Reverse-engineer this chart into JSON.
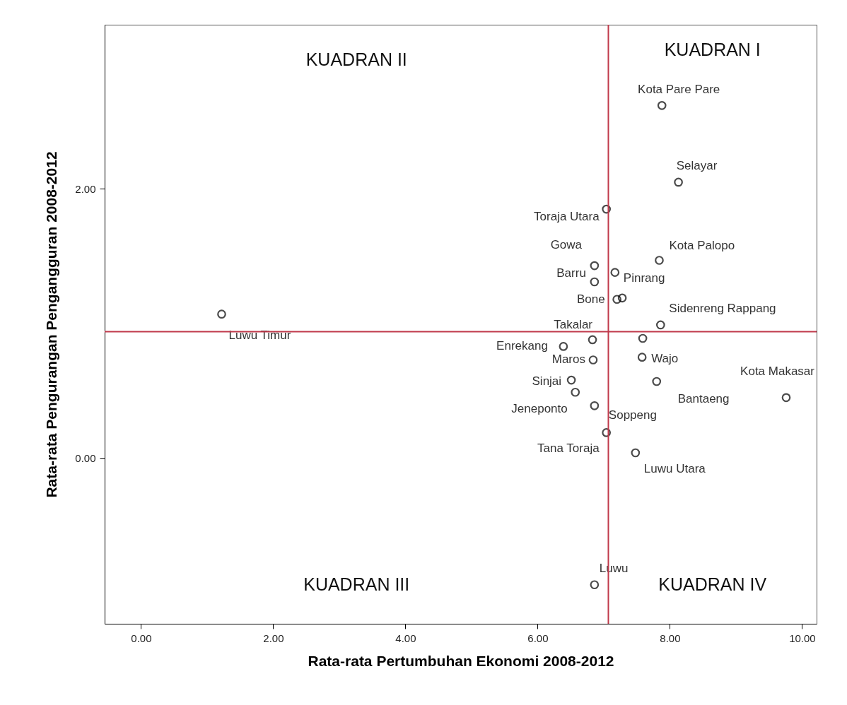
{
  "chart_data": {
    "type": "scatter",
    "xlabel": "Rata-rata Pertumbuhan Ekonomi 2008-2012",
    "ylabel": "Rata-rata Pengurangan Pengangguran 2008-2012",
    "xlim": [
      -0.55,
      10.22
    ],
    "ylim": [
      -1.23,
      3.22
    ],
    "xticks": [
      {
        "value": 0,
        "label": "0.00"
      },
      {
        "value": 2,
        "label": "2.00"
      },
      {
        "value": 4,
        "label": "4.00"
      },
      {
        "value": 6,
        "label": "6.00"
      },
      {
        "value": 8,
        "label": "8.00"
      },
      {
        "value": 10,
        "label": "10.00"
      }
    ],
    "yticks": [
      {
        "value": 0,
        "label": "0.00"
      },
      {
        "value": 2,
        "label": "2.00"
      }
    ],
    "grid": false,
    "marker": "circle",
    "series": [
      {
        "color": "#000000",
        "x": [
          7.88,
          8.13,
          7.04,
          7.84,
          6.86,
          7.17,
          6.86,
          7.2,
          7.28,
          7.86,
          6.83,
          7.59,
          6.39,
          6.84,
          7.58,
          7.8,
          9.76,
          6.51,
          6.57,
          6.86,
          7.04,
          7.48,
          6.86,
          1.22
        ],
        "values": [
          2.62,
          2.05,
          1.85,
          1.47,
          1.43,
          1.38,
          1.31,
          1.18,
          1.19,
          0.99,
          0.88,
          0.89,
          0.83,
          0.73,
          0.75,
          0.57,
          0.45,
          0.58,
          0.49,
          0.39,
          0.19,
          0.04,
          -0.94,
          1.07
        ],
        "value_labels": [
          "Kota Pare Pare",
          "Selayar",
          "Toraja Utara",
          "Kota Palopo",
          "Gowa",
          "Pinrang",
          "Barru",
          "Bone",
          null,
          "Sidenreng Rappang",
          "Takalar",
          null,
          "Enrekang",
          "Maros",
          "Wajo",
          "Bantaeng",
          "Kota Makasar",
          "Sinjai",
          "Jeneponto",
          "Soppeng",
          "Tana Toraja",
          "Luwu Utara",
          "Luwu",
          "Luwu Timur"
        ]
      }
    ],
    "ref_lines": [
      {
        "axis": "x",
        "value": 7.07,
        "color": "#c0394b"
      },
      {
        "axis": "y",
        "value": 0.94,
        "color": "#c0394b"
      }
    ],
    "annotations": [
      "KUADRAN II",
      "KUADRAN I",
      "KUADRAN III",
      "KUADRAN IV"
    ]
  }
}
